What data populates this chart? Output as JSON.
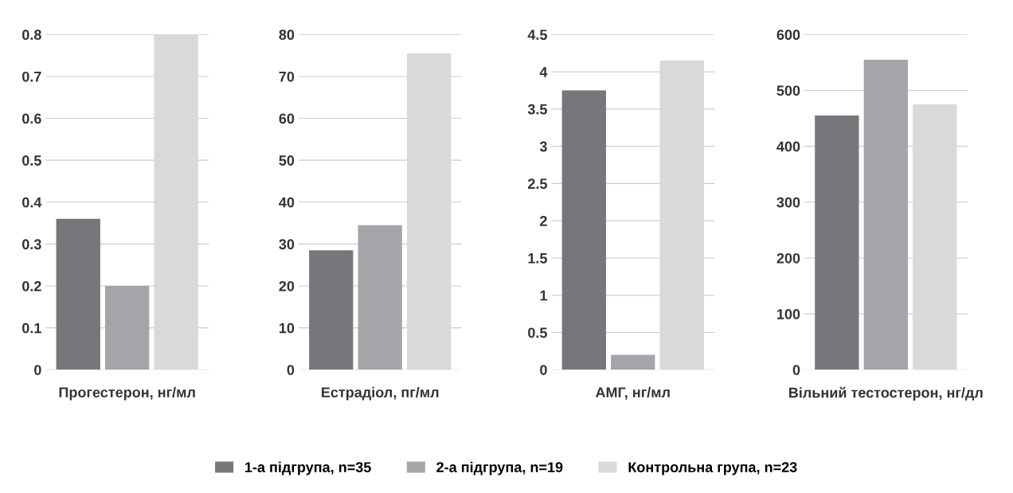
{
  "chart_data": [
    {
      "type": "bar",
      "xlabel": "Прогестерон, нг/мл",
      "categories": [
        null
      ],
      "ylim": [
        0,
        0.8
      ],
      "yticks": [
        0,
        0.1,
        0.2,
        0.3,
        0.4,
        0.5,
        0.6,
        0.7,
        0.8
      ],
      "grid": "y",
      "legend": "bottom",
      "series": [
        {
          "name": "1-а підгрупа, n=35",
          "color": "#77777b",
          "values": [
            0.36
          ]
        },
        {
          "name": "2-а підгрупа, n=19",
          "color": "#a5a5a9",
          "values": [
            0.2
          ]
        },
        {
          "name": "Контрольна група, n=23",
          "color": "#d9d9db",
          "values": [
            0.8
          ]
        }
      ]
    },
    {
      "type": "bar",
      "xlabel": "Естрадіол, пг/мл",
      "categories": [
        null
      ],
      "ylim": [
        0,
        80
      ],
      "yticks": [
        0,
        10,
        20,
        30,
        40,
        50,
        60,
        70,
        80
      ],
      "grid": "y",
      "series": [
        {
          "color": "#77777b",
          "values": [
            28.5
          ]
        },
        {
          "color": "#a5a5a9",
          "values": [
            34.5
          ]
        },
        {
          "color": "#d9d9db",
          "values": [
            75.5
          ]
        }
      ]
    },
    {
      "type": "bar",
      "xlabel": "АМГ, нг/мл",
      "categories": [
        null
      ],
      "ylim": [
        0,
        4.5
      ],
      "yticks": [
        0,
        0.5,
        1,
        1.5,
        2,
        2.5,
        3,
        3.5,
        4,
        4.5
      ],
      "grid": "y",
      "series": [
        {
          "color": "#77777b",
          "values": [
            3.75
          ]
        },
        {
          "color": "#a5a5a9",
          "values": [
            0.2
          ]
        },
        {
          "color": "#d9d9db",
          "values": [
            4.15
          ]
        }
      ]
    },
    {
      "type": "bar",
      "xlabel": "Вільний тестостерон, нг/дл",
      "categories": [
        null
      ],
      "ylim": [
        0,
        600
      ],
      "yticks": [
        0,
        100,
        200,
        300,
        400,
        500,
        600
      ],
      "grid": "y",
      "series": [
        {
          "color": "#77777b",
          "values": [
            455
          ]
        },
        {
          "color": "#a5a5a9",
          "values": [
            555
          ]
        },
        {
          "color": "#d9d9db",
          "values": [
            475
          ]
        }
      ]
    }
  ]
}
